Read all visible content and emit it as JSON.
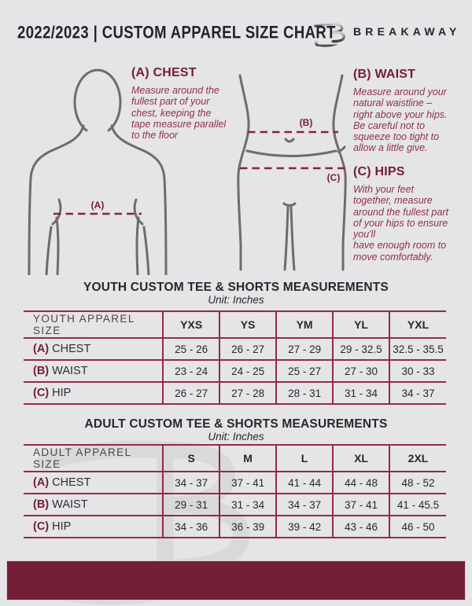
{
  "colors": {
    "background": "#e5e4e6",
    "accent_maroon": "#731d38",
    "body_maroon": "#8e3050",
    "table_border": "#94294b",
    "footer_bar": "#741e37",
    "figure_stroke": "#6d6d6d"
  },
  "header": {
    "title": "2022/2023  |  CUSTOM APPAREL SIZE CHART",
    "brand": "BREAKAWAY",
    "logo_icon": "breakaway-b-logo"
  },
  "diagrams": {
    "chest_label": "(A)",
    "waist_label": "(B)",
    "hips_label": "(C)"
  },
  "instructions": {
    "chest": {
      "heading": "(A) CHEST",
      "body": "Measure around the\nfullest part of your\nchest, keeping the\ntape measure parallel\nto the floor"
    },
    "waist": {
      "heading": "(B) WAIST",
      "body": "Measure around your\nnatural waistline –\nright above your hips.\nBe careful not to\nsqueeze too tight to\nallow a little give."
    },
    "hips": {
      "heading": "(C) HIPS",
      "body": "With your feet\ntogether, measure\naround the fullest part\nof your hips to ensure\nyou'll\nhave enough room to\nmove comfortably."
    }
  },
  "youth_table": {
    "title": "YOUTH CUSTOM TEE & SHORTS MEASUREMENTS",
    "unit": "Unit: Inches",
    "header": [
      "YOUTH APPAREL SIZE",
      "YXS",
      "YS",
      "YM",
      "YL",
      "YXL"
    ],
    "rows": [
      {
        "prefix": "(A)",
        "label": "CHEST",
        "values": [
          "25 - 26",
          "26 - 27",
          "27 - 29",
          "29 - 32.5",
          "32.5 - 35.5"
        ]
      },
      {
        "prefix": "(B)",
        "label": "WAIST",
        "values": [
          "23 - 24",
          "24 - 25",
          "25 - 27",
          "27 - 30",
          "30 - 33"
        ]
      },
      {
        "prefix": "(C)",
        "label": "HIP",
        "values": [
          "26 - 27",
          "27 - 28",
          "28 - 31",
          "31 - 34",
          "34 - 37"
        ]
      }
    ]
  },
  "adult_table": {
    "title": "ADULT CUSTOM TEE & SHORTS MEASUREMENTS",
    "unit": "Unit: Inches",
    "header": [
      "ADULT APPAREL SIZE",
      "S",
      "M",
      "L",
      "XL",
      "2XL"
    ],
    "rows": [
      {
        "prefix": "(A)",
        "label": "CHEST",
        "values": [
          "34 - 37",
          "37 - 41",
          "41 - 44",
          "44 - 48",
          "48 - 52"
        ]
      },
      {
        "prefix": "(B)",
        "label": "WAIST",
        "values": [
          "29 - 31",
          "31 - 34",
          "34 - 37",
          "37 - 41",
          "41 - 45.5"
        ]
      },
      {
        "prefix": "(C)",
        "label": "HIP",
        "values": [
          "34 - 36",
          "36 - 39",
          "39 - 42",
          "43 - 46",
          "46 - 50"
        ]
      }
    ]
  }
}
